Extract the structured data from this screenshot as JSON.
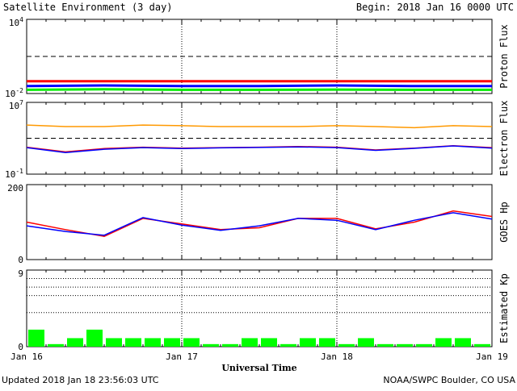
{
  "title": "Satellite Environment (3 day)",
  "begin_label": "Begin:  2018 Jan 16 0000 UTC",
  "updated": "Updated 2018 Jan 18 23:56:03 UTC",
  "credit": "NOAA/SWPC Boulder, CO USA",
  "xlabel": "Universal Time",
  "x_ticks": [
    "Jan 16",
    "Jan 17",
    "Jan 18",
    "Jan 19"
  ],
  "colors": {
    "red": "#ff0000",
    "blue": "#0000ff",
    "green": "#00ee00",
    "orange": "#ff9900",
    "kp_bar": "#00ff00",
    "axis": "#000000"
  },
  "chart_data": [
    {
      "type": "line",
      "name": "proton-flux",
      "ylabel": "Proton Flux",
      "yscale": "log",
      "ylim": [
        0.01,
        10000
      ],
      "y_tick_labels": [
        "10^4",
        "10^-2"
      ],
      "x_range_days": [
        0,
        3
      ],
      "threshold": 10,
      "series": [
        {
          "color": "red",
          "x": [
            0,
            0.5,
            1.0,
            1.5,
            2.0,
            2.5,
            3.0
          ],
          "y": [
            0.1,
            0.1,
            0.1,
            0.1,
            0.1,
            0.1,
            0.1
          ]
        },
        {
          "color": "blue",
          "x": [
            0,
            0.5,
            1.0,
            1.5,
            2.0,
            2.5,
            3.0
          ],
          "y": [
            0.04,
            0.045,
            0.04,
            0.04,
            0.045,
            0.04,
            0.04
          ]
        },
        {
          "color": "green",
          "x": [
            0,
            0.5,
            1.0,
            1.5,
            2.0,
            2.5,
            3.0
          ],
          "y": [
            0.02,
            0.022,
            0.02,
            0.02,
            0.021,
            0.02,
            0.02
          ]
        }
      ]
    },
    {
      "type": "line",
      "name": "electron-flux",
      "ylabel": "Electron Flux",
      "yscale": "log",
      "ylim": [
        0.1,
        10000000
      ],
      "y_tick_labels": [
        "10^7",
        "10^-1"
      ],
      "x_range_days": [
        0,
        3
      ],
      "threshold": 1000,
      "series": [
        {
          "color": "orange",
          "x": [
            0,
            0.25,
            0.5,
            0.75,
            1.0,
            1.25,
            1.5,
            1.75,
            2.0,
            2.25,
            2.5,
            2.75,
            3.0
          ],
          "y": [
            30000,
            20000,
            20000,
            30000,
            25000,
            20000,
            20000,
            20000,
            25000,
            20000,
            15000,
            25000,
            20000
          ]
        },
        {
          "color": "red",
          "x": [
            0,
            0.25,
            0.5,
            0.75,
            1.0,
            1.25,
            1.5,
            1.75,
            2.0,
            2.25,
            2.5,
            2.75,
            3.0
          ],
          "y": [
            100,
            30,
            70,
            100,
            80,
            90,
            100,
            120,
            100,
            50,
            80,
            150,
            90
          ]
        },
        {
          "color": "blue",
          "x": [
            0,
            0.25,
            0.5,
            0.75,
            1.0,
            1.25,
            1.5,
            1.75,
            2.0,
            2.25,
            2.5,
            2.75,
            3.0
          ],
          "y": [
            90,
            25,
            60,
            90,
            70,
            85,
            95,
            110,
            90,
            45,
            75,
            140,
            80
          ]
        }
      ]
    },
    {
      "type": "line",
      "name": "goes-hp",
      "ylabel": "GOES Hp",
      "yscale": "linear",
      "ylim": [
        0,
        200
      ],
      "y_tick_labels": [
        "200",
        "0"
      ],
      "x_range_days": [
        0,
        3
      ],
      "series": [
        {
          "color": "red",
          "x": [
            0,
            0.25,
            0.5,
            0.75,
            1.0,
            1.25,
            1.5,
            1.75,
            2.0,
            2.25,
            2.5,
            2.75,
            3.0
          ],
          "y": [
            100,
            80,
            62,
            110,
            95,
            80,
            85,
            110,
            110,
            82,
            100,
            130,
            115
          ]
        },
        {
          "color": "blue",
          "x": [
            0,
            0.25,
            0.5,
            0.75,
            1.0,
            1.25,
            1.5,
            1.75,
            2.0,
            2.25,
            2.5,
            2.75,
            3.0
          ],
          "y": [
            90,
            75,
            65,
            112,
            92,
            78,
            90,
            110,
            105,
            80,
            105,
            125,
            108
          ]
        }
      ]
    },
    {
      "type": "bar",
      "name": "estimated-kp",
      "ylabel": "Estimated Kp",
      "ylim": [
        0,
        9
      ],
      "y_tick_labels": [
        "9",
        "0"
      ],
      "gridlines": [
        4,
        6,
        7,
        8
      ],
      "values": [
        2,
        0.3,
        1,
        2,
        1,
        1,
        1,
        1,
        1,
        0.3,
        0.3,
        1,
        1,
        0.3,
        1,
        1,
        0.3,
        1,
        0.3,
        0.3,
        0.3,
        1,
        1,
        0.3
      ]
    }
  ]
}
